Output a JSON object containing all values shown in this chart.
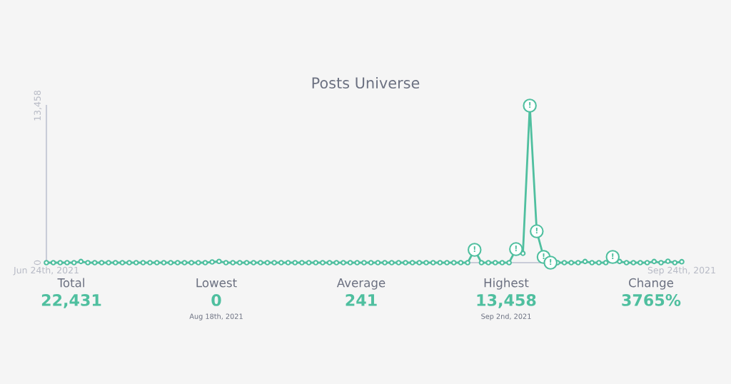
{
  "chart_data": [
    {
      "type": "line",
      "title": "Posts Universe",
      "marker": "circle",
      "line_style": "solid",
      "grid": false,
      "x": [
        "2021-06-24",
        "2021-06-25",
        "2021-06-26",
        "2021-06-27",
        "2021-06-28",
        "2021-06-29",
        "2021-06-30",
        "2021-07-01",
        "2021-07-02",
        "2021-07-03",
        "2021-07-04",
        "2021-07-05",
        "2021-07-06",
        "2021-07-07",
        "2021-07-08",
        "2021-07-09",
        "2021-07-10",
        "2021-07-11",
        "2021-07-12",
        "2021-07-13",
        "2021-07-14",
        "2021-07-15",
        "2021-07-16",
        "2021-07-17",
        "2021-07-18",
        "2021-07-19",
        "2021-07-20",
        "2021-07-21",
        "2021-07-22",
        "2021-07-23",
        "2021-07-24",
        "2021-07-25",
        "2021-07-26",
        "2021-07-27",
        "2021-07-28",
        "2021-07-29",
        "2021-07-30",
        "2021-07-31",
        "2021-08-01",
        "2021-08-02",
        "2021-08-03",
        "2021-08-04",
        "2021-08-05",
        "2021-08-06",
        "2021-08-07",
        "2021-08-08",
        "2021-08-09",
        "2021-08-10",
        "2021-08-11",
        "2021-08-12",
        "2021-08-13",
        "2021-08-14",
        "2021-08-15",
        "2021-08-16",
        "2021-08-17",
        "2021-08-18",
        "2021-08-19",
        "2021-08-20",
        "2021-08-21",
        "2021-08-22",
        "2021-08-23",
        "2021-08-24",
        "2021-08-25",
        "2021-08-26",
        "2021-08-27",
        "2021-08-28",
        "2021-08-29",
        "2021-08-30",
        "2021-08-31",
        "2021-09-01",
        "2021-09-02",
        "2021-09-03",
        "2021-09-04",
        "2021-09-05",
        "2021-09-06",
        "2021-09-07",
        "2021-09-08",
        "2021-09-09",
        "2021-09-10",
        "2021-09-11",
        "2021-09-12",
        "2021-09-13",
        "2021-09-14",
        "2021-09-15",
        "2021-09-16",
        "2021-09-17",
        "2021-09-18",
        "2021-09-19",
        "2021-09-20",
        "2021-09-21",
        "2021-09-22",
        "2021-09-23",
        "2021-09-24"
      ],
      "series": [
        {
          "color": "#4fbf9f",
          "values": [
            0,
            0,
            0,
            0,
            0,
            100,
            0,
            0,
            0,
            0,
            0,
            0,
            0,
            0,
            0,
            0,
            0,
            0,
            0,
            0,
            0,
            0,
            0,
            0,
            60,
            110,
            0,
            0,
            0,
            0,
            0,
            0,
            0,
            0,
            0,
            0,
            0,
            0,
            0,
            0,
            0,
            0,
            0,
            0,
            0,
            0,
            0,
            0,
            0,
            0,
            0,
            0,
            0,
            0,
            0,
            0,
            0,
            0,
            0,
            0,
            0,
            0,
            1100,
            0,
            0,
            0,
            0,
            0,
            1160,
            800,
            13458,
            2690,
            490,
            0,
            0,
            0,
            0,
            0,
            100,
            0,
            0,
            0,
            490,
            100,
            0,
            0,
            0,
            0,
            100,
            0,
            120,
            0,
            80
          ]
        }
      ],
      "xlim": [
        "2021-06-24",
        "2021-09-24"
      ],
      "xticks": [
        {
          "value": "2021-06-24",
          "label": "Jun 24th, 2021"
        },
        {
          "value": "2021-09-24",
          "label": "Sep 24th, 2021"
        }
      ],
      "ylim": [
        0,
        13458
      ],
      "yticks": [
        0,
        {
          "value": 13458,
          "label": "13,458"
        }
      ],
      "annotations": [
        {
          "text": "!",
          "x": "2021-08-25",
          "y": 1100
        },
        {
          "text": "!",
          "x": "2021-08-31",
          "y": 1160
        },
        {
          "text": "!",
          "x": "2021-09-02",
          "y": 13458
        },
        {
          "text": "!",
          "x": "2021-09-03",
          "y": 2690
        },
        {
          "text": "!",
          "x": "2021-09-04",
          "y": 490
        },
        {
          "text": "!",
          "x": "2021-09-05",
          "y": 0
        },
        {
          "text": "!",
          "x": "2021-09-14",
          "y": 490
        }
      ]
    },
    {
      "type": "other",
      "categories": [
        "Total",
        "Lowest",
        "Average",
        "Highest",
        "Change"
      ],
      "value_labels": [
        "22,431",
        "0",
        "241",
        "13,458",
        "3765%"
      ],
      "color": "#4fbf9f",
      "annotations": [
        {
          "text": "Aug 18th, 2021",
          "x": "Lowest"
        },
        {
          "text": "Sep 2nd, 2021",
          "x": "Highest"
        }
      ]
    }
  ]
}
